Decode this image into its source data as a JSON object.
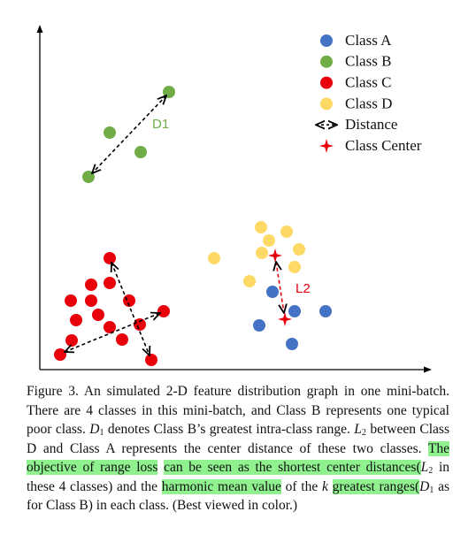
{
  "legend": {
    "items": [
      {
        "label": "Class A",
        "kind": "dot",
        "color": "#4472c4"
      },
      {
        "label": "Class B",
        "kind": "dot",
        "color": "#70ad47"
      },
      {
        "label": "Class C",
        "kind": "dot",
        "color": "#e8000b"
      },
      {
        "label": "Class D",
        "kind": "dot",
        "color": "#ffd966"
      },
      {
        "label": "Distance",
        "kind": "arrow",
        "color": "#000000"
      },
      {
        "label": "Class Center",
        "kind": "star",
        "color": "#e8000b"
      }
    ]
  },
  "annotations": {
    "d1": "D1",
    "l2": "L2"
  },
  "caption": {
    "runs": [
      {
        "text": "Figure 3. An simulated 2-D feature distribution graph in one mini-batch. There are 4 classes in this mini-batch, and Class B represents one typical poor class. "
      },
      {
        "math": "D",
        "sub": "1"
      },
      {
        "text": " denotes Class B’s greatest intra-class range. "
      },
      {
        "math": "L",
        "sub": "2"
      },
      {
        "text": " between Class D and Class A represents the center distance of these two classes. "
      },
      {
        "text": "The objective of range loss",
        "highlight": true
      },
      {
        "text": " "
      },
      {
        "text": "can be seen as the shortest center distances(",
        "highlight": true
      },
      {
        "math": "L",
        "sub": "2"
      },
      {
        "text": " in these 4 classes) and the "
      },
      {
        "text": "harmonic mean value",
        "highlight": true
      },
      {
        "text": " of the "
      },
      {
        "math": "k"
      },
      {
        "text": " "
      },
      {
        "text": "greatest ranges(",
        "highlight": true
      },
      {
        "math": "D",
        "sub": "1"
      },
      {
        "text": " as for Class B) in each class. (Best viewed in color.)"
      }
    ]
  }
}
